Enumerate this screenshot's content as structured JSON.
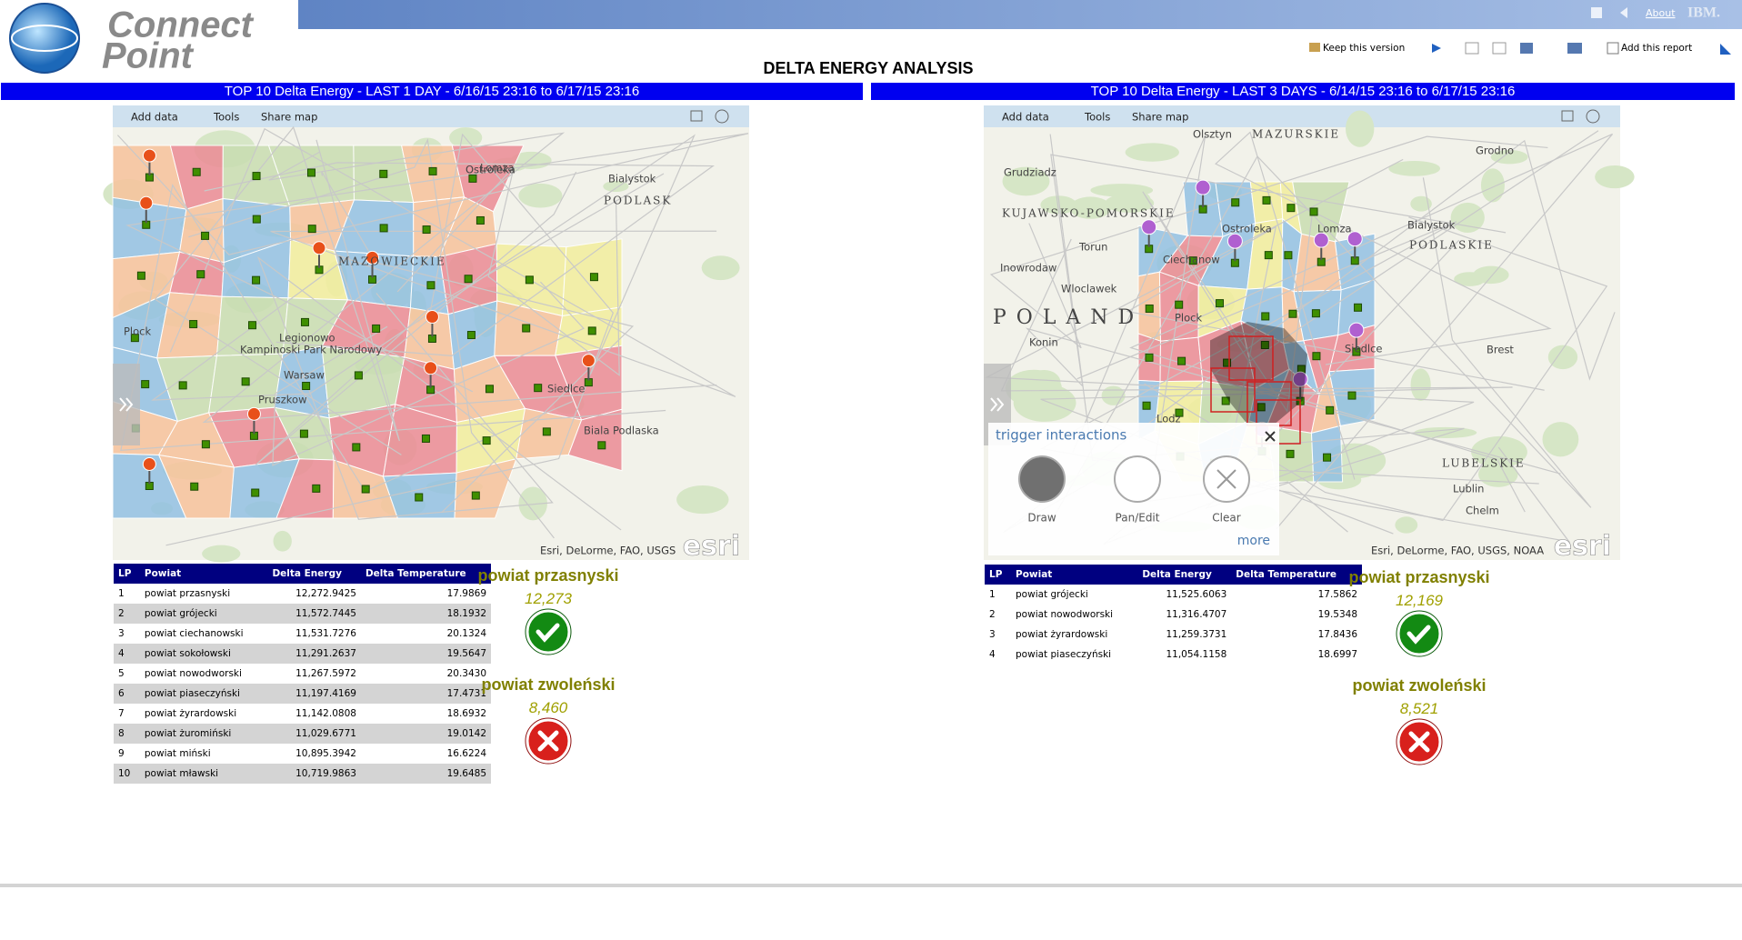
{
  "header": {
    "logo": [
      "Connect",
      "Point"
    ],
    "about": "About",
    "brand": "IBM.",
    "keep": "Keep this version",
    "add": "Add this report"
  },
  "title": "DELTA ENERGY ANALYSIS",
  "panels": [
    {
      "heading": "TOP 10 Delta Energy - LAST 1 DAY - 6/16/15 23:16 to 6/17/15 23:16",
      "map": {
        "toolbar": [
          "Add data",
          "Tools",
          "Share map"
        ],
        "labels": [
          "Lomza",
          "Ostroleka",
          "Bialystok",
          "PODLASK",
          "MAZOWIECKIE",
          "Plock",
          "Legionowo",
          "Warsaw",
          "Pruszkow",
          "Siedlce",
          "Biala Podlaska",
          "Kampinoski Park Narodowy"
        ],
        "attribution": "Esri, DeLorme, FAO, USGS",
        "logo": "esri"
      },
      "table": {
        "columns": [
          "LP",
          "Powiat",
          "Delta Energy",
          "Delta Temperature"
        ],
        "rows": [
          [
            "1",
            "powiat przasnyski",
            "12,272.9425",
            "17.9869"
          ],
          [
            "2",
            "powiat grójecki",
            "11,572.7445",
            "18.1932"
          ],
          [
            "3",
            "powiat ciechanowski",
            "11,531.7276",
            "20.1324"
          ],
          [
            "4",
            "powiat sokołowski",
            "11,291.2637",
            "19.5647"
          ],
          [
            "5",
            "powiat nowodworski",
            "11,267.5972",
            "20.3430"
          ],
          [
            "6",
            "powiat piaseczyński",
            "11,197.4169",
            "17.4731"
          ],
          [
            "7",
            "powiat żyrardowski",
            "11,142.0808",
            "18.6932"
          ],
          [
            "8",
            "powiat żuromiński",
            "11,029.6771",
            "19.0142"
          ],
          [
            "9",
            "powiat miński",
            "10,895.3942",
            "16.6224"
          ],
          [
            "10",
            "powiat mławski",
            "10,719.9863",
            "19.6485"
          ]
        ]
      },
      "kpis": [
        {
          "name": "powiat przasnyski",
          "value": "12,273"
        },
        {
          "name": "powiat zwoleński",
          "value": "8,460"
        }
      ]
    },
    {
      "heading": "TOP 10 Delta Energy - LAST 3 DAYS - 6/14/15 23:16 to 6/17/15 23:16",
      "map": {
        "toolbar": [
          "Add data",
          "Tools",
          "Share map"
        ],
        "labels": [
          "Olsztyn",
          "MAZURSKIE",
          "Grudziadz",
          "KUJAWSKO-POMORSKIE",
          "Torun",
          "Inowrodaw",
          "Wloclawek",
          "P O L A N D",
          "Plock",
          "Ciechanow",
          "Ostroleka",
          "Lomza",
          "Bialystok",
          "PODLASKIE",
          "Grodno",
          "Brest",
          "Siedlce",
          "Lodz",
          "Konin",
          "LUBELSKIE",
          "Lublin",
          "Chelm"
        ],
        "attribution": "Esri, DeLorme, FAO, USGS, NOAA",
        "logo": "esri"
      },
      "table": {
        "columns": [
          "LP",
          "Powiat",
          "Delta Energy",
          "Delta Temperature"
        ],
        "rows": [
          [
            "1",
            "powiat grójecki",
            "11,525.6063",
            "17.5862"
          ],
          [
            "2",
            "powiat nowodworski",
            "11,316.4707",
            "19.5348"
          ],
          [
            "3",
            "powiat żyrardowski",
            "11,259.3731",
            "17.8436"
          ],
          [
            "4",
            "powiat piaseczyński",
            "11,054.1158",
            "18.6997"
          ]
        ]
      },
      "kpis": [
        {
          "name": "powiat przasnyski",
          "value": "12,169"
        },
        {
          "name": "powiat zwoleński",
          "value": "8,521"
        }
      ]
    }
  ],
  "trigger": {
    "title": "trigger interactions",
    "tools": [
      "Draw",
      "Pan/Edit",
      "Clear"
    ],
    "more": "more"
  }
}
